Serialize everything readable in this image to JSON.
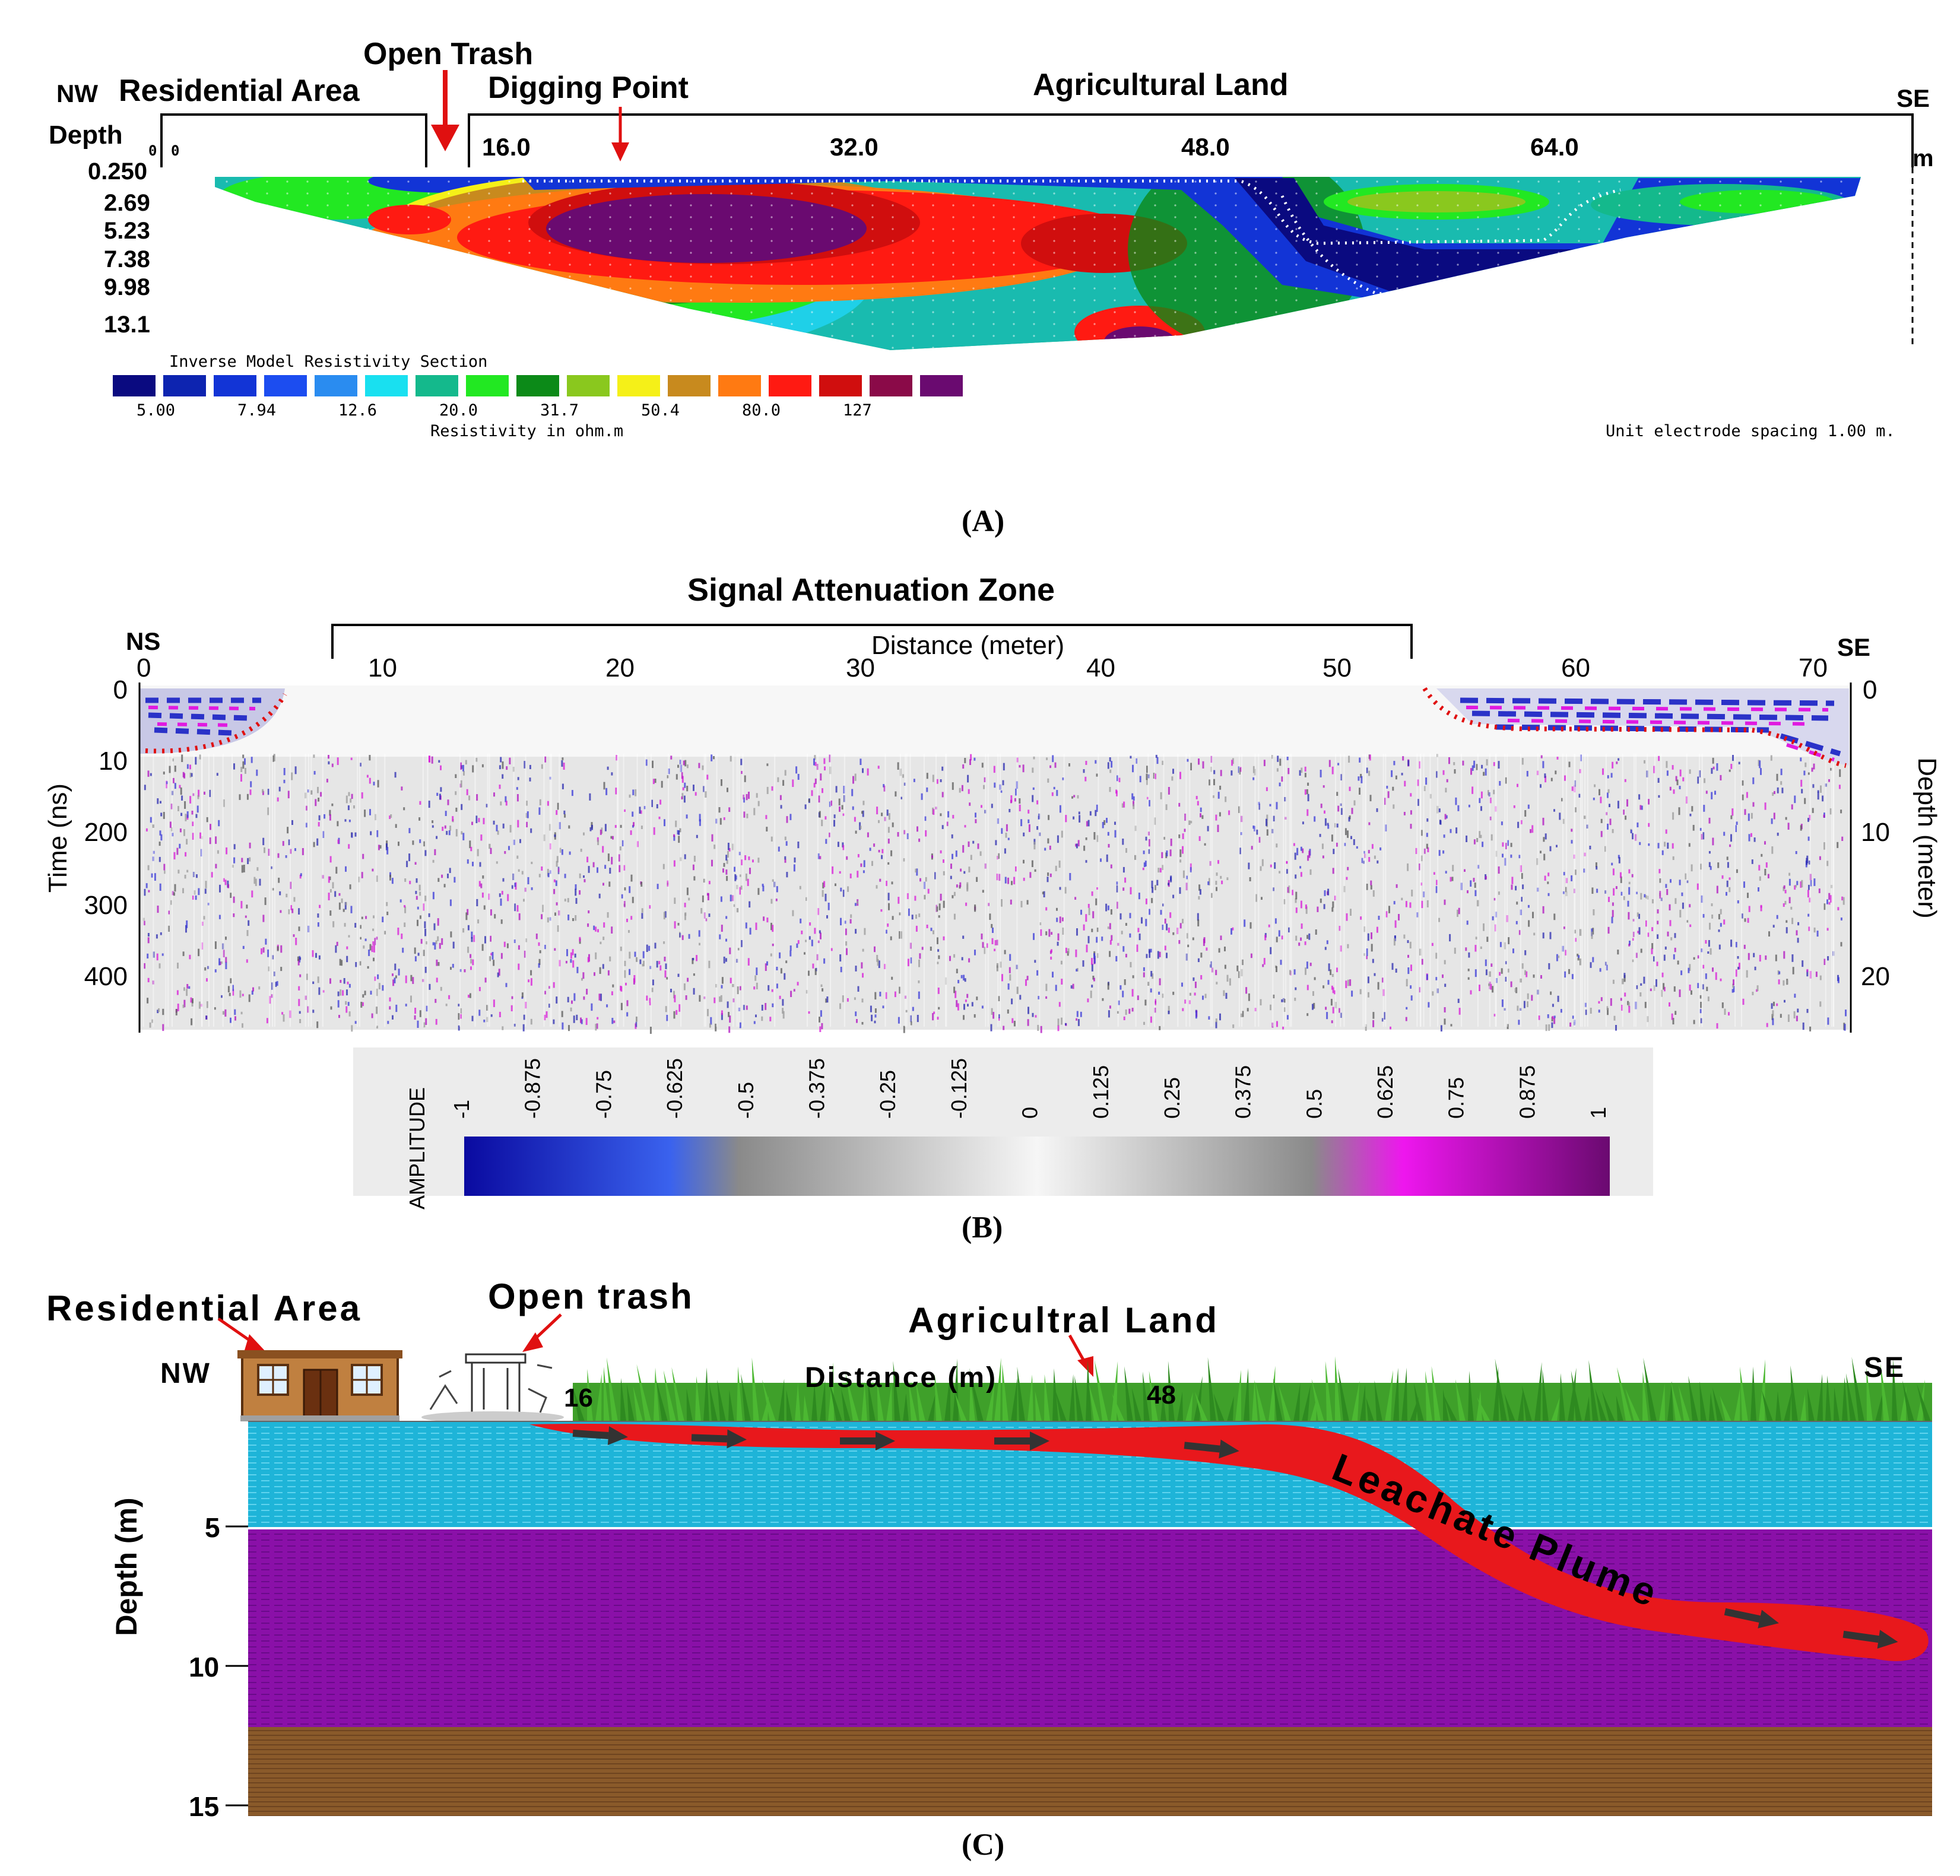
{
  "panelA": {
    "label": "(A)",
    "header": {
      "nw": "NW",
      "residential": "Residential Area",
      "open_trash": "Open Trash",
      "digging_point": "Digging Point",
      "agricultural": "Agricultural Land",
      "se": "SE",
      "depth": "Depth",
      "unit_m": "m"
    },
    "x_ticks": [
      "0",
      "16.0",
      "32.0",
      "48.0",
      "64.0"
    ],
    "x_origin_marks": [
      "0",
      "0"
    ],
    "depth_ticks": [
      "0.250",
      "2.69",
      "5.23",
      "7.38",
      "9.98",
      "13.1"
    ],
    "legend": {
      "title": "Inverse Model Resistivity Section",
      "colors": [
        "#0a0a80",
        "#0d24b0",
        "#1234d6",
        "#1c4df0",
        "#2a8cf0",
        "#19e0f0",
        "#14b98c",
        "#22e822",
        "#0c8a18",
        "#8ac81e",
        "#f5f018",
        "#c88a1e",
        "#ff7a12",
        "#ff1a12",
        "#d00e0e",
        "#8a0a48",
        "#6a0a70"
      ],
      "values": [
        "5.00",
        "7.94",
        "12.6",
        "20.0",
        "31.7",
        "50.4",
        "80.0",
        "127"
      ],
      "unit_label": "Resistivity in ohm.m",
      "spacing_note": "Unit electrode spacing 1.00 m."
    }
  },
  "panelB": {
    "label": "(B)",
    "title": "Signal Attenuation Zone",
    "x_axis_label": "Distance (meter)",
    "ns": "NS",
    "se": "SE",
    "x_ticks": [
      "0",
      "10",
      "20",
      "30",
      "40",
      "50",
      "60",
      "70"
    ],
    "time_label": "Time (ns)",
    "time_ticks": [
      "0",
      "10",
      "200",
      "300",
      "400"
    ],
    "depth_label": "Depth (meter)",
    "depth_ticks": [
      "0",
      "10",
      "20"
    ],
    "colorbar": {
      "title": "AMPLITUDE",
      "ticks": [
        "-1",
        "-0.875",
        "-0.75",
        "-0.625",
        "-0.5",
        "-0.375",
        "-0.25",
        "-0.125",
        "0",
        "0.125",
        "0.25",
        "0.375",
        "0.5",
        "0.625",
        "0.75",
        "0.875",
        "1"
      ],
      "colors": [
        "#0a0aa0",
        "#3a62ee",
        "#8a8a8a",
        "#f4f4f4",
        "#8a8a8a",
        "#ee16ee",
        "#6a0a70"
      ]
    }
  },
  "panelC": {
    "label": "(C)",
    "residential": "Residential Area",
    "open_trash": "Open trash",
    "agricultural": "Agricultral Land",
    "distance": "Distance (m)",
    "nw": "NW",
    "se": "SE",
    "tick16": "16",
    "tick48": "48",
    "depth_label": "Depth (m)",
    "depth_ticks": [
      "5",
      "10",
      "15"
    ],
    "plume": "Leachate Plume",
    "colors": {
      "grass": "#3fa02a",
      "layer1": "#1eb4d8",
      "layer2": "#8a10a8",
      "layer3": "#8a5a2a",
      "plume": "#e8181c"
    }
  }
}
